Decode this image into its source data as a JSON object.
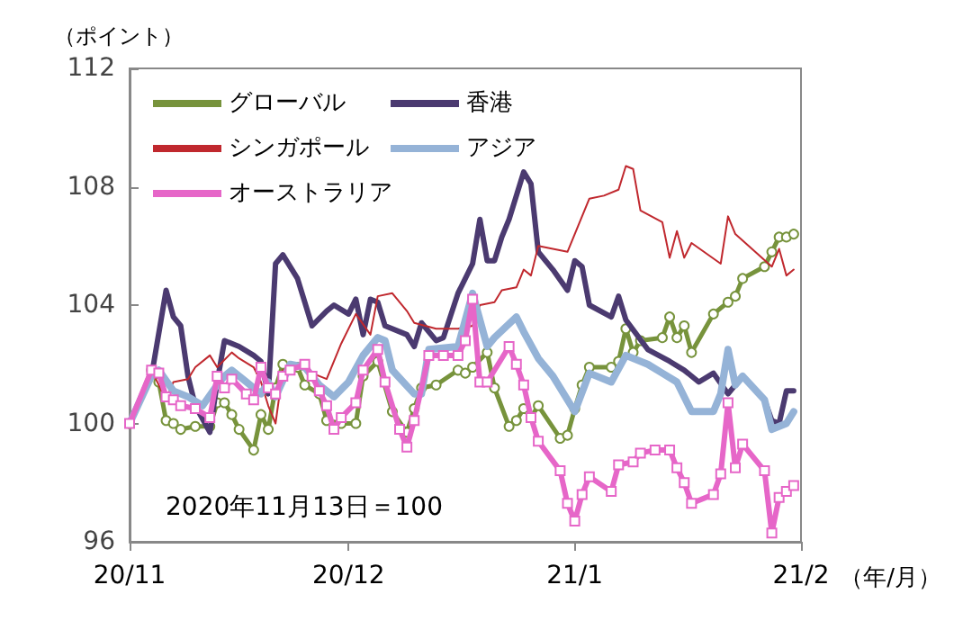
{
  "chart_data": {
    "type": "line",
    "ylabel": "（ポイント）",
    "xlabel": "（年/月）",
    "annotations": [
      "2020年11月13日＝100"
    ],
    "xlim": [
      "2020-11-01",
      "2021-02-01"
    ],
    "xticks": [
      {
        "value": "2020-11-01",
        "label": "20/11"
      },
      {
        "value": "2020-12-01",
        "label": "20/12"
      },
      {
        "value": "2021-01-01",
        "label": "21/1"
      },
      {
        "value": "2021-02-01",
        "label": "21/2"
      }
    ],
    "ylim": [
      96,
      112
    ],
    "yticks": [
      96,
      100,
      104,
      108,
      112
    ],
    "grid": false,
    "legend": "top left",
    "line_style": "solid",
    "series": [
      {
        "name": "グローバル",
        "color": "#77933c",
        "marker": "circle",
        "x": [
          "2020-11-01",
          "2020-11-04",
          "2020-11-05",
          "2020-11-06",
          "2020-11-07",
          "2020-11-08",
          "2020-11-10",
          "2020-11-12",
          "2020-11-13",
          "2020-11-14",
          "2020-11-15",
          "2020-11-16",
          "2020-11-18",
          "2020-11-19",
          "2020-11-20",
          "2020-11-21",
          "2020-11-22",
          "2020-11-24",
          "2020-11-25",
          "2020-11-27",
          "2020-11-28",
          "2020-11-30",
          "2020-12-02",
          "2020-12-03",
          "2020-12-05",
          "2020-12-07",
          "2020-12-09",
          "2020-12-10",
          "2020-12-11",
          "2020-12-13",
          "2020-12-16",
          "2020-12-17",
          "2020-12-18",
          "2020-12-20",
          "2020-12-21",
          "2020-12-23",
          "2020-12-24",
          "2020-12-25",
          "2020-12-26",
          "2020-12-27",
          "2020-12-30",
          "2020-12-31",
          "2021-01-01",
          "2021-01-02",
          "2021-01-03",
          "2021-01-06",
          "2021-01-07",
          "2021-01-08",
          "2021-01-09",
          "2021-01-10",
          "2021-01-13",
          "2021-01-14",
          "2021-01-15",
          "2021-01-16",
          "2021-01-17",
          "2021-01-20",
          "2021-01-22",
          "2021-01-23",
          "2021-01-24",
          "2021-01-27",
          "2021-01-28",
          "2021-01-29",
          "2021-01-30",
          "2021-01-31"
        ],
        "values": [
          100,
          101.8,
          101.4,
          100.1,
          100,
          99.8,
          99.9,
          99.9,
          100.7,
          100.7,
          100.3,
          99.8,
          99.1,
          100.3,
          99.8,
          101.2,
          102,
          101.9,
          101.3,
          101,
          100.1,
          100,
          100,
          101.6,
          102.1,
          100.4,
          99.7,
          100.5,
          101.2,
          101.3,
          101.8,
          101.7,
          101.9,
          102.4,
          101.2,
          99.9,
          100.1,
          100.5,
          100.2,
          100.6,
          99.5,
          99.6,
          100.5,
          101.3,
          101.9,
          101.9,
          102.1,
          103.2,
          102.4,
          102.8,
          102.9,
          103.6,
          102.9,
          103.3,
          102.4,
          103.7,
          104.1,
          104.3,
          104.9,
          105.3,
          105.8,
          106.3,
          106.3,
          106.4
        ]
      },
      {
        "name": "香港",
        "color": "#4b3a70",
        "marker": "none",
        "x": [
          "2020-11-01",
          "2020-11-04",
          "2020-11-06",
          "2020-11-07",
          "2020-11-08",
          "2020-11-09",
          "2020-11-10",
          "2020-11-12",
          "2020-11-13",
          "2020-11-14",
          "2020-11-16",
          "2020-11-18",
          "2020-11-19",
          "2020-11-20",
          "2020-11-21",
          "2020-11-22",
          "2020-11-24",
          "2020-11-25",
          "2020-11-26",
          "2020-11-28",
          "2020-11-29",
          "2020-12-01",
          "2020-12-02",
          "2020-12-03",
          "2020-12-04",
          "2020-12-05",
          "2020-12-06",
          "2020-12-09",
          "2020-12-10",
          "2020-12-11",
          "2020-12-13",
          "2020-12-14",
          "2020-12-16",
          "2020-12-18",
          "2020-12-19",
          "2020-12-20",
          "2020-12-21",
          "2020-12-22",
          "2020-12-23",
          "2020-12-25",
          "2020-12-26",
          "2020-12-27",
          "2020-12-29",
          "2020-12-31",
          "2021-01-01",
          "2021-01-02",
          "2021-01-03",
          "2021-01-06",
          "2021-01-07",
          "2021-01-08",
          "2021-01-11",
          "2021-01-14",
          "2021-01-16",
          "2021-01-18",
          "2021-01-20",
          "2021-01-22",
          "2021-01-24",
          "2021-01-27",
          "2021-01-28",
          "2021-01-29",
          "2021-01-30",
          "2021-01-31"
        ],
        "values": [
          100,
          101.6,
          104.5,
          103.6,
          103.3,
          101.6,
          100.6,
          99.7,
          101.4,
          102.8,
          102.6,
          102.3,
          102.1,
          101,
          105.4,
          105.7,
          104.9,
          104.1,
          103.3,
          103.8,
          104,
          103.7,
          104.2,
          103,
          104.2,
          104.1,
          103.3,
          103,
          102.6,
          103.4,
          102.8,
          102.9,
          104.4,
          105.4,
          106.9,
          105.5,
          105.5,
          106.3,
          106.9,
          108.5,
          108.1,
          105.8,
          105.2,
          104.5,
          105.5,
          105.3,
          104,
          103.6,
          104.3,
          103.5,
          102.5,
          102.1,
          101.8,
          101.4,
          101.7,
          101,
          101.6,
          100.8,
          100.1,
          100,
          101.1,
          101.1
        ]
      },
      {
        "name": "シンガポール",
        "color": "#c0282e",
        "marker": "none",
        "x": [
          "2020-11-01",
          "2020-11-04",
          "2020-11-06",
          "2020-11-07",
          "2020-11-09",
          "2020-11-10",
          "2020-11-12",
          "2020-11-13",
          "2020-11-15",
          "2020-11-16",
          "2020-11-18",
          "2020-11-19",
          "2020-11-20",
          "2020-11-21",
          "2020-11-22",
          "2020-11-24",
          "2020-11-26",
          "2020-11-28",
          "2020-11-30",
          "2020-12-02",
          "2020-12-04",
          "2020-12-05",
          "2020-12-07",
          "2020-12-09",
          "2020-12-10",
          "2020-12-13",
          "2020-12-16",
          "2020-12-18",
          "2020-12-19",
          "2020-12-21",
          "2020-12-22",
          "2020-12-24",
          "2020-12-25",
          "2020-12-26",
          "2020-12-27",
          "2020-12-29",
          "2020-12-31",
          "2021-01-03",
          "2021-01-05",
          "2021-01-07",
          "2021-01-08",
          "2021-01-09",
          "2021-01-10",
          "2021-01-13",
          "2021-01-14",
          "2021-01-15",
          "2021-01-16",
          "2021-01-17",
          "2021-01-21",
          "2021-01-22",
          "2021-01-23",
          "2021-01-28",
          "2021-01-29",
          "2021-01-30",
          "2021-01-31"
        ],
        "values": [
          100,
          101.8,
          100.8,
          101.4,
          101.5,
          101.9,
          102.3,
          101.9,
          102.4,
          102.2,
          101.9,
          101.4,
          100.6,
          100,
          101.8,
          101.9,
          101.7,
          101.5,
          102.7,
          103.7,
          103,
          104.3,
          104.4,
          103.8,
          103.4,
          103.2,
          103.2,
          103.3,
          104,
          104.1,
          104.5,
          104.6,
          105.2,
          105,
          106,
          105.9,
          105.8,
          107.6,
          107.7,
          107.9,
          108.7,
          108.6,
          107.2,
          106.8,
          105.6,
          106.5,
          105.6,
          106.1,
          105.4,
          107,
          106.4,
          105.3,
          105.9,
          105,
          105.2
        ]
      },
      {
        "name": "アジア",
        "color": "#95b3d7",
        "marker": "none",
        "x": [
          "2020-11-01",
          "2020-11-04",
          "2020-11-05",
          "2020-11-07",
          "2020-11-09",
          "2020-11-11",
          "2020-11-13",
          "2020-11-14",
          "2020-11-15",
          "2020-11-17",
          "2020-11-19",
          "2020-11-20",
          "2020-11-21",
          "2020-11-23",
          "2020-11-25",
          "2020-11-27",
          "2020-11-29",
          "2020-12-01",
          "2020-12-03",
          "2020-12-05",
          "2020-12-06",
          "2020-12-07",
          "2020-12-10",
          "2020-12-11",
          "2020-12-12",
          "2020-12-16",
          "2020-12-18",
          "2020-12-20",
          "2020-12-21",
          "2020-12-24",
          "2020-12-25",
          "2020-12-27",
          "2020-12-29",
          "2021-01-01",
          "2021-01-03",
          "2021-01-06",
          "2021-01-08",
          "2021-01-11",
          "2021-01-13",
          "2021-01-15",
          "2021-01-17",
          "2021-01-20",
          "2021-01-21",
          "2021-01-22",
          "2021-01-23",
          "2021-01-24",
          "2021-01-27",
          "2021-01-28",
          "2021-01-30",
          "2021-01-31"
        ],
        "values": [
          100,
          101.6,
          101.8,
          101.1,
          100.9,
          100.6,
          101.3,
          101.6,
          101.8,
          101.4,
          101,
          101.4,
          100.9,
          102,
          101.9,
          101.3,
          100.9,
          101.4,
          102.3,
          102.9,
          102.8,
          101.8,
          101,
          101,
          102.5,
          102.6,
          104.4,
          102.6,
          102.9,
          103.6,
          103.1,
          102.2,
          101.6,
          100.4,
          101.7,
          101.4,
          102.3,
          102,
          101.7,
          101.4,
          100.4,
          100.4,
          101,
          102.5,
          101.3,
          101.6,
          100.8,
          99.8,
          100,
          100.4
        ]
      },
      {
        "name": "オーストラリア",
        "color": "#e666c8",
        "marker": "square",
        "x": [
          "2020-11-01",
          "2020-11-04",
          "2020-11-05",
          "2020-11-06",
          "2020-11-07",
          "2020-11-08",
          "2020-11-10",
          "2020-11-12",
          "2020-11-13",
          "2020-11-14",
          "2020-11-15",
          "2020-11-17",
          "2020-11-18",
          "2020-11-19",
          "2020-11-20",
          "2020-11-21",
          "2020-11-22",
          "2020-11-23",
          "2020-11-25",
          "2020-11-26",
          "2020-11-27",
          "2020-11-28",
          "2020-11-29",
          "2020-11-30",
          "2020-12-02",
          "2020-12-03",
          "2020-12-05",
          "2020-12-06",
          "2020-12-08",
          "2020-12-09",
          "2020-12-10",
          "2020-12-12",
          "2020-12-14",
          "2020-12-16",
          "2020-12-17",
          "2020-12-18",
          "2020-12-19",
          "2020-12-20",
          "2020-12-23",
          "2020-12-24",
          "2020-12-25",
          "2020-12-26",
          "2020-12-27",
          "2020-12-30",
          "2020-12-31",
          "2021-01-01",
          "2021-01-02",
          "2021-01-03",
          "2021-01-06",
          "2021-01-07",
          "2021-01-09",
          "2021-01-10",
          "2021-01-12",
          "2021-01-14",
          "2021-01-15",
          "2021-01-16",
          "2021-01-17",
          "2021-01-20",
          "2021-01-21",
          "2021-01-22",
          "2021-01-23",
          "2021-01-24",
          "2021-01-27",
          "2021-01-28",
          "2021-01-29",
          "2021-01-30",
          "2021-01-31"
        ],
        "values": [
          100,
          101.8,
          101.7,
          100.9,
          100.8,
          100.6,
          100.5,
          100.2,
          101.6,
          101.2,
          101.5,
          101,
          100.8,
          101.9,
          101.2,
          101,
          101.6,
          101.8,
          102,
          101.6,
          101.1,
          100.6,
          99.8,
          100.2,
          100.7,
          101.8,
          102.5,
          101.4,
          99.8,
          99.2,
          100.1,
          102.3,
          102.3,
          102.3,
          102.8,
          104.2,
          101.4,
          101.4,
          102.6,
          102,
          101.3,
          100.2,
          99.4,
          98.4,
          97.3,
          96.7,
          97.6,
          98.2,
          97.7,
          98.6,
          98.7,
          99,
          99.1,
          99.1,
          98.5,
          98,
          97.3,
          97.6,
          98.3,
          100.7,
          98.5,
          99.3,
          98.4,
          96.3,
          97.5,
          97.7,
          97.9
        ]
      }
    ]
  }
}
